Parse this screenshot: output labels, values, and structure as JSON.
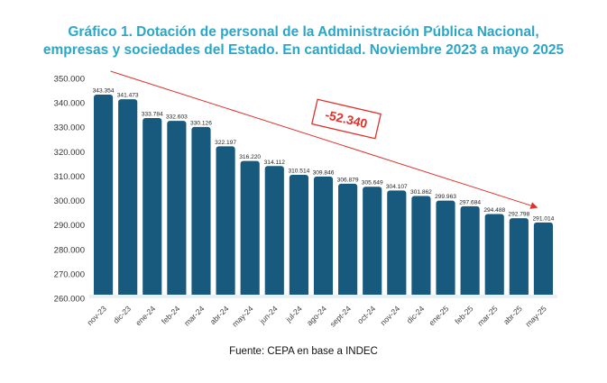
{
  "title_line1": "Gráfico 1. Dotación de personal de la Administración Pública Nacional,",
  "title_line2": "empresas y sociedades del Estado. En cantidad. Noviembre 2023 a mayo 2025",
  "source": "Fuente: CEPA en base a INDEC",
  "colors": {
    "bar": "#175a7d",
    "title": "#2aa6c9",
    "annotation": "#e0312a"
  },
  "chart_data": {
    "type": "bar",
    "title": "Gráfico 1. Dotación de personal de la Administración Pública Nacional, empresas y sociedades del Estado. En cantidad. Noviembre 2023 a mayo 2025",
    "categories": [
      "nov-23",
      "dic-23",
      "ene-24",
      "feb-24",
      "mar-24",
      "abr-24",
      "may-24",
      "jun-24",
      "jul-24",
      "ago-24",
      "sept-24",
      "oct-24",
      "nov-24",
      "dic-24",
      "ene-25",
      "feb-25",
      "mar-25",
      "abr-25",
      "may-25"
    ],
    "values": [
      343354,
      341473,
      333784,
      332603,
      330126,
      322197,
      316220,
      314112,
      310514,
      309846,
      306879,
      305649,
      304107,
      301862,
      299963,
      297684,
      294488,
      292798,
      291014
    ],
    "data_labels": [
      "343.354",
      "341.473",
      "333.784",
      "332.603",
      "330.126",
      "322.197",
      "316.220",
      "314.112",
      "310.514",
      "309.846",
      "306.879",
      "305.649",
      "304.107",
      "301.862",
      "299.963",
      "297.684",
      "294.488",
      "292.798",
      "291.014"
    ],
    "ylim": [
      260000,
      350000
    ],
    "yticks": [
      260000,
      270000,
      280000,
      290000,
      300000,
      310000,
      320000,
      330000,
      340000,
      350000
    ],
    "ytick_labels": [
      "260.000",
      "270.000",
      "280.000",
      "290.000",
      "300.000",
      "310.000",
      "320.000",
      "330.000",
      "340.000",
      "350.000"
    ],
    "grid": false,
    "annotation": {
      "text": "-52.340",
      "from": "nov-23",
      "to": "may-25"
    }
  }
}
